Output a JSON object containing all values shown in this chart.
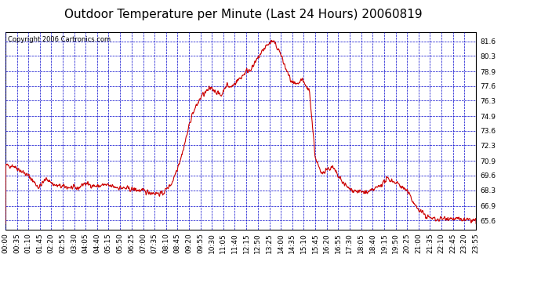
{
  "title": "Outdoor Temperature per Minute (Last 24 Hours) 20060819",
  "copyright_text": "Copyright 2006 Cartronics.com",
  "line_color": "#cc0000",
  "background_color": "#ffffff",
  "plot_background": "#ffffff",
  "grid_color": "#0000cc",
  "yticks": [
    65.6,
    66.9,
    68.3,
    69.6,
    70.9,
    72.3,
    73.6,
    74.9,
    76.3,
    77.6,
    78.9,
    80.3,
    81.6
  ],
  "ylim": [
    64.8,
    82.4
  ],
  "xtick_labels": [
    "00:00",
    "00:35",
    "01:10",
    "01:45",
    "02:20",
    "02:55",
    "03:30",
    "04:05",
    "04:40",
    "05:15",
    "05:50",
    "06:25",
    "07:00",
    "07:35",
    "08:10",
    "08:45",
    "09:20",
    "09:55",
    "10:30",
    "11:05",
    "11:40",
    "12:15",
    "12:50",
    "13:25",
    "14:00",
    "14:35",
    "15:10",
    "15:45",
    "16:20",
    "16:55",
    "17:30",
    "18:05",
    "18:40",
    "19:15",
    "19:50",
    "20:25",
    "21:00",
    "21:35",
    "22:10",
    "22:45",
    "23:20",
    "23:55"
  ],
  "title_fontsize": 11,
  "tick_fontsize": 6.5,
  "copyright_fontsize": 6
}
